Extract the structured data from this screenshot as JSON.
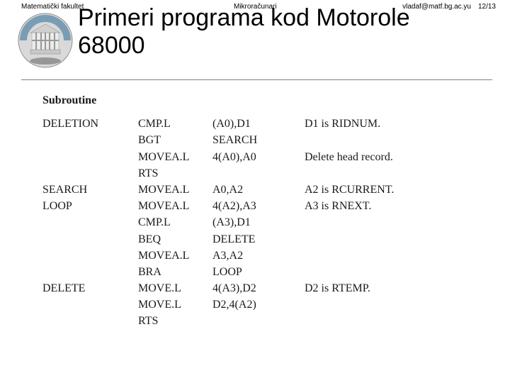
{
  "header": {
    "left": "Matematički fakultet",
    "center": "Mikroračunari",
    "email": "vladaf@matf.bg.ac.yu",
    "page": "12/13"
  },
  "title_line1": "Primeri programa kod Motorole",
  "title_line2": "68000",
  "logo": {
    "outer_bg": "#d9d9d9",
    "band": "#7a9db5",
    "pillar": "#e8e8e8",
    "shadow": "#6b6b6b"
  },
  "subroutine_label": "Subroutine",
  "rows": [
    {
      "label": "DELETION",
      "mnem": "CMP.L",
      "op": "(A0),D1",
      "comment": "D1 is RIDNUM."
    },
    {
      "label": "",
      "mnem": "BGT",
      "op": "SEARCH",
      "comment": ""
    },
    {
      "label": "",
      "mnem": "MOVEA.L",
      "op": "4(A0),A0",
      "comment": "Delete head record."
    },
    {
      "label": "",
      "mnem": "RTS",
      "op": "",
      "comment": ""
    },
    {
      "label": "SEARCH",
      "mnem": "MOVEA.L",
      "op": "A0,A2",
      "comment": "A2 is RCURRENT."
    },
    {
      "label": "LOOP",
      "mnem": "MOVEA.L",
      "op": "4(A2),A3",
      "comment": "A3 is RNEXT."
    },
    {
      "label": "",
      "mnem": "CMP.L",
      "op": "(A3),D1",
      "comment": ""
    },
    {
      "label": "",
      "mnem": "BEQ",
      "op": "DELETE",
      "comment": ""
    },
    {
      "label": "",
      "mnem": "MOVEA.L",
      "op": "A3,A2",
      "comment": ""
    },
    {
      "label": "",
      "mnem": "BRA",
      "op": "LOOP",
      "comment": ""
    },
    {
      "label": "DELETE",
      "mnem": "MOVE.L",
      "op": "4(A3),D2",
      "comment": "D2 is RTEMP."
    },
    {
      "label": "",
      "mnem": "MOVE.L",
      "op": "D2,4(A2)",
      "comment": ""
    },
    {
      "label": "",
      "mnem": "RTS",
      "op": "",
      "comment": ""
    }
  ]
}
